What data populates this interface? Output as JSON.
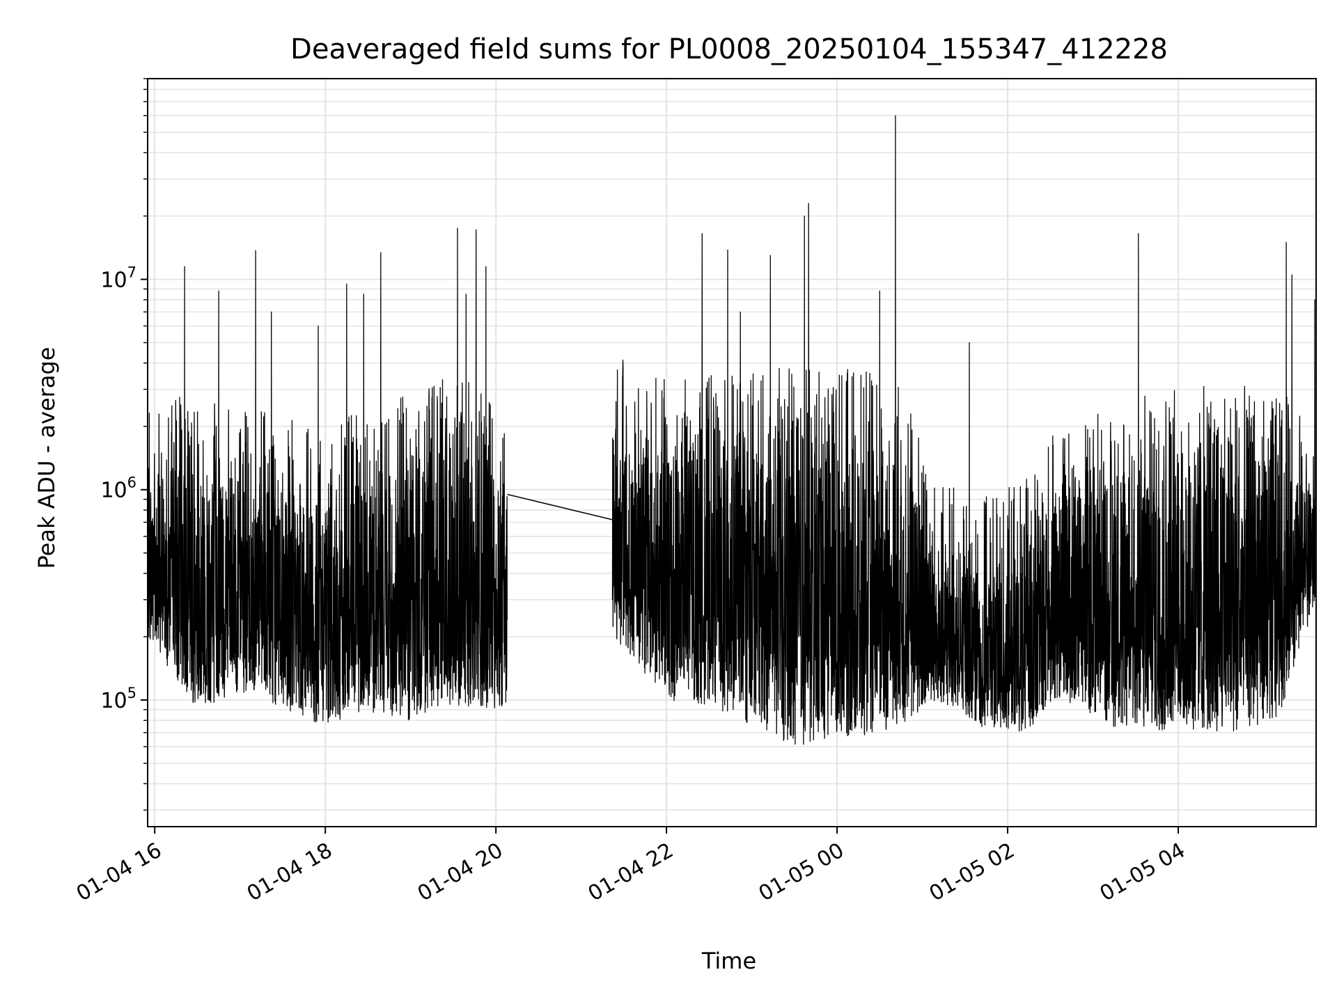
{
  "chart_data": {
    "type": "line",
    "title": "Deaveraged field sums for PL0008_20250104_155347_412228",
    "xlabel": "Time",
    "ylabel": "Peak ADU - average",
    "y_scale": "log",
    "ylim": [
      25000,
      90000000
    ],
    "xlim": [
      "2025-01-04 15:55",
      "2025-01-05 05:37"
    ],
    "x_ticks": [
      "2025-01-04 16:00",
      "2025-01-04 18:00",
      "2025-01-04 20:00",
      "2025-01-04 22:00",
      "2025-01-05 00:00",
      "2025-01-05 02:00",
      "2025-01-05 04:00"
    ],
    "x_tick_labels": [
      "01-04 16",
      "01-04 18",
      "01-04 20",
      "01-04 22",
      "01-05 00",
      "01-05 02",
      "01-05 04"
    ],
    "y_ticks": [
      100000,
      1000000,
      10000000
    ],
    "y_tick_labels": [
      {
        "base": "10",
        "exp": "5"
      },
      {
        "base": "10",
        "exp": "6"
      },
      {
        "base": "10",
        "exp": "7"
      }
    ],
    "grid": true,
    "line_color": "#000000",
    "series": [
      {
        "x": [
          "2025-01-04 15:55",
          "2025-01-04 16:15",
          "2025-01-04 16:35",
          "2025-01-04 16:55",
          "2025-01-04 17:15",
          "2025-01-04 17:35",
          "2025-01-04 17:55",
          "2025-01-04 18:15",
          "2025-01-04 18:35",
          "2025-01-04 18:55",
          "2025-01-04 19:15",
          "2025-01-04 19:35",
          "2025-01-04 19:55",
          "2025-01-04 20:08",
          "2025-01-04 21:22",
          "2025-01-04 21:40",
          "2025-01-04 22:00",
          "2025-01-04 22:20",
          "2025-01-04 22:40",
          "2025-01-04 23:00",
          "2025-01-04 23:20",
          "2025-01-04 23:40",
          "2025-01-05 00:00",
          "2025-01-05 00:20",
          "2025-01-05 00:45",
          "2025-01-05 01:05",
          "2025-01-05 01:25",
          "2025-01-05 01:45",
          "2025-01-05 02:05",
          "2025-01-05 02:25",
          "2025-01-05 02:45",
          "2025-01-05 03:05",
          "2025-01-05 03:25",
          "2025-01-05 03:45",
          "2025-01-05 04:05",
          "2025-01-05 04:25",
          "2025-01-05 04:45",
          "2025-01-05 05:05",
          "2025-01-05 05:25",
          "2025-01-05 05:37"
        ],
        "y": [
          500000,
          300000,
          250000,
          280000,
          220000,
          200000,
          150000,
          300000,
          320000,
          330000,
          350000,
          380000,
          420000,
          950000,
          720000,
          300000,
          280000,
          260000,
          220000,
          180000,
          200000,
          180000,
          190000,
          200000,
          600000,
          250000,
          200000,
          150000,
          120000,
          300000,
          350000,
          250000,
          200000,
          220000,
          250000,
          230000,
          220000,
          240000,
          260000,
          600000
        ]
      }
    ],
    "envelope": {
      "x": [
        "2025-01-04 15:55",
        "2025-01-04 16:30",
        "2025-01-04 17:00",
        "2025-01-04 17:30",
        "2025-01-04 18:00",
        "2025-01-04 18:30",
        "2025-01-04 19:00",
        "2025-01-04 19:30",
        "2025-01-04 20:08",
        "2025-01-04 21:22",
        "2025-01-04 22:00",
        "2025-01-04 22:30",
        "2025-01-04 23:00",
        "2025-01-04 23:30",
        "2025-01-05 00:00",
        "2025-01-05 00:30",
        "2025-01-05 00:50",
        "2025-01-05 01:10",
        "2025-01-05 01:40",
        "2025-01-05 02:10",
        "2025-01-05 02:40",
        "2025-01-05 03:10",
        "2025-01-05 03:40",
        "2025-01-05 04:10",
        "2025-01-05 04:40",
        "2025-01-05 05:10",
        "2025-01-05 05:37"
      ],
      "low": [
        200000,
        90000,
        110000,
        90000,
        75000,
        85000,
        80000,
        95000,
        90000,
        200000,
        100000,
        95000,
        75000,
        60000,
        65000,
        70000,
        80000,
        100000,
        75000,
        70000,
        100000,
        75000,
        70000,
        70000,
        70000,
        80000,
        300000
      ],
      "high": [
        1200000,
        1300000,
        1100000,
        1000000,
        900000,
        1100000,
        1300000,
        1600000,
        1200000,
        2000000,
        1500000,
        1600000,
        1700000,
        1700000,
        1700000,
        1600000,
        1300000,
        500000,
        400000,
        500000,
        1000000,
        1100000,
        1300000,
        1400000,
        1400000,
        1400000,
        900000
      ]
    },
    "spikes": [
      {
        "x": "2025-01-04 16:21",
        "y": 11500000
      },
      {
        "x": "2025-01-04 16:45",
        "y": 8800000
      },
      {
        "x": "2025-01-04 17:11",
        "y": 13700000
      },
      {
        "x": "2025-01-04 17:22",
        "y": 7000000
      },
      {
        "x": "2025-01-04 17:55",
        "y": 6000000
      },
      {
        "x": "2025-01-04 18:15",
        "y": 9500000
      },
      {
        "x": "2025-01-04 18:27",
        "y": 8500000
      },
      {
        "x": "2025-01-04 18:39",
        "y": 13400000
      },
      {
        "x": "2025-01-04 19:33",
        "y": 17500000
      },
      {
        "x": "2025-01-04 19:39",
        "y": 8500000
      },
      {
        "x": "2025-01-04 19:46",
        "y": 17200000
      },
      {
        "x": "2025-01-04 19:53",
        "y": 11500000
      },
      {
        "x": "2025-01-04 22:25",
        "y": 16500000
      },
      {
        "x": "2025-01-04 22:43",
        "y": 13800000
      },
      {
        "x": "2025-01-04 22:52",
        "y": 7000000
      },
      {
        "x": "2025-01-04 23:13",
        "y": 13000000
      },
      {
        "x": "2025-01-04 23:37",
        "y": 20000000
      },
      {
        "x": "2025-01-04 23:40",
        "y": 23000000
      },
      {
        "x": "2025-01-05 00:30",
        "y": 8800000
      },
      {
        "x": "2025-01-05 00:41",
        "y": 60000000
      },
      {
        "x": "2025-01-05 01:33",
        "y": 5000000
      },
      {
        "x": "2025-01-05 03:32",
        "y": 16500000
      },
      {
        "x": "2025-01-05 05:16",
        "y": 15000000
      },
      {
        "x": "2025-01-05 05:20",
        "y": 10500000
      },
      {
        "x": "2025-01-05 05:36",
        "y": 8000000
      }
    ]
  }
}
